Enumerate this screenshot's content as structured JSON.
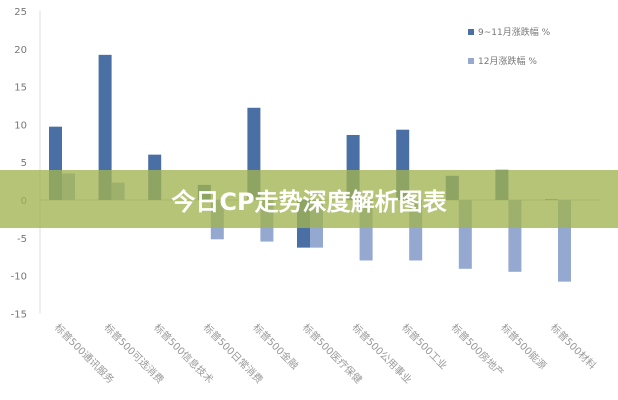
{
  "banner": {
    "title": "今日CP走势深度解析图表"
  },
  "chart_data": {
    "type": "bar",
    "categories": [
      "标普500通讯服务",
      "标普500可选消费",
      "标普500信息技术",
      "标普500日常消费",
      "标普500金融",
      "标普500医疗保健",
      "标普500公用事业",
      "标普500工业",
      "标普500房地产",
      "标普500能源",
      "标普500材料"
    ],
    "series": [
      {
        "name": "9~11月涨跌幅 %",
        "color": "#4a6fa5",
        "values": [
          9.7,
          19.2,
          6.0,
          2.0,
          12.2,
          -6.3,
          8.6,
          9.3,
          3.2,
          4.0,
          0.1
        ]
      },
      {
        "name": "12月涨跌幅 %",
        "color": "#95a8d0",
        "values": [
          3.5,
          2.3,
          null,
          -5.2,
          -5.5,
          -6.3,
          -8.0,
          -8.0,
          -9.1,
          -9.5,
          -10.8
        ]
      }
    ],
    "yticks": [
      25,
      20,
      15,
      10,
      5,
      0,
      -5,
      -10,
      -15
    ],
    "ylim": [
      -15,
      25
    ],
    "legend": "top-right",
    "grid": false
  }
}
